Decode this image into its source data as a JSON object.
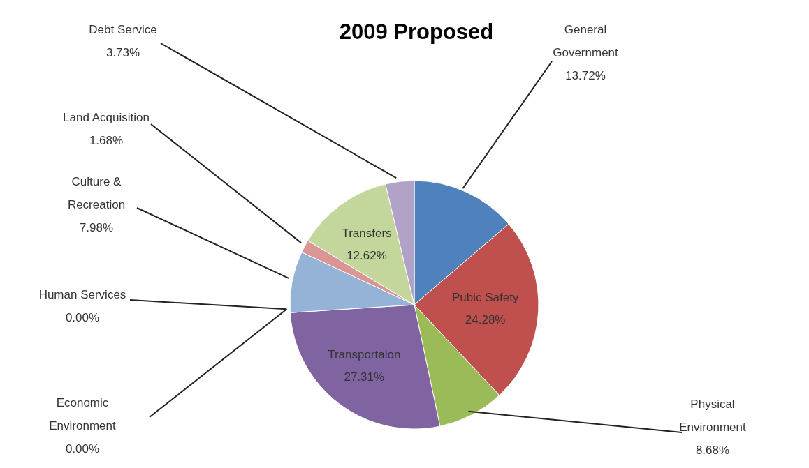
{
  "chart_data": {
    "type": "pie",
    "title": "2009 Proposed",
    "categories": [
      "General Government",
      "Pubic Safety",
      "Physical Environment",
      "Transportaion",
      "Economic Environment",
      "Human Services",
      "Culture & Recreation",
      "Land Acquisition",
      "Transfers",
      "Debt Service"
    ],
    "values": [
      13.72,
      24.28,
      8.68,
      27.31,
      0.0,
      0.0,
      7.98,
      1.68,
      12.62,
      3.73
    ],
    "colors": [
      "#4f81bd",
      "#c0504d",
      "#9bbb59",
      "#8064a2",
      "#4bacc6",
      "#f79646",
      "#95b3d7",
      "#d99694",
      "#c3d69b",
      "#b3a2c7"
    ],
    "value_labels": [
      "13.72%",
      "24.28%",
      "8.68%",
      "27.31%",
      "0.00%",
      "0.00%",
      "7.98%",
      "1.68%",
      "12.62%",
      "3.73%"
    ],
    "legend": false
  }
}
